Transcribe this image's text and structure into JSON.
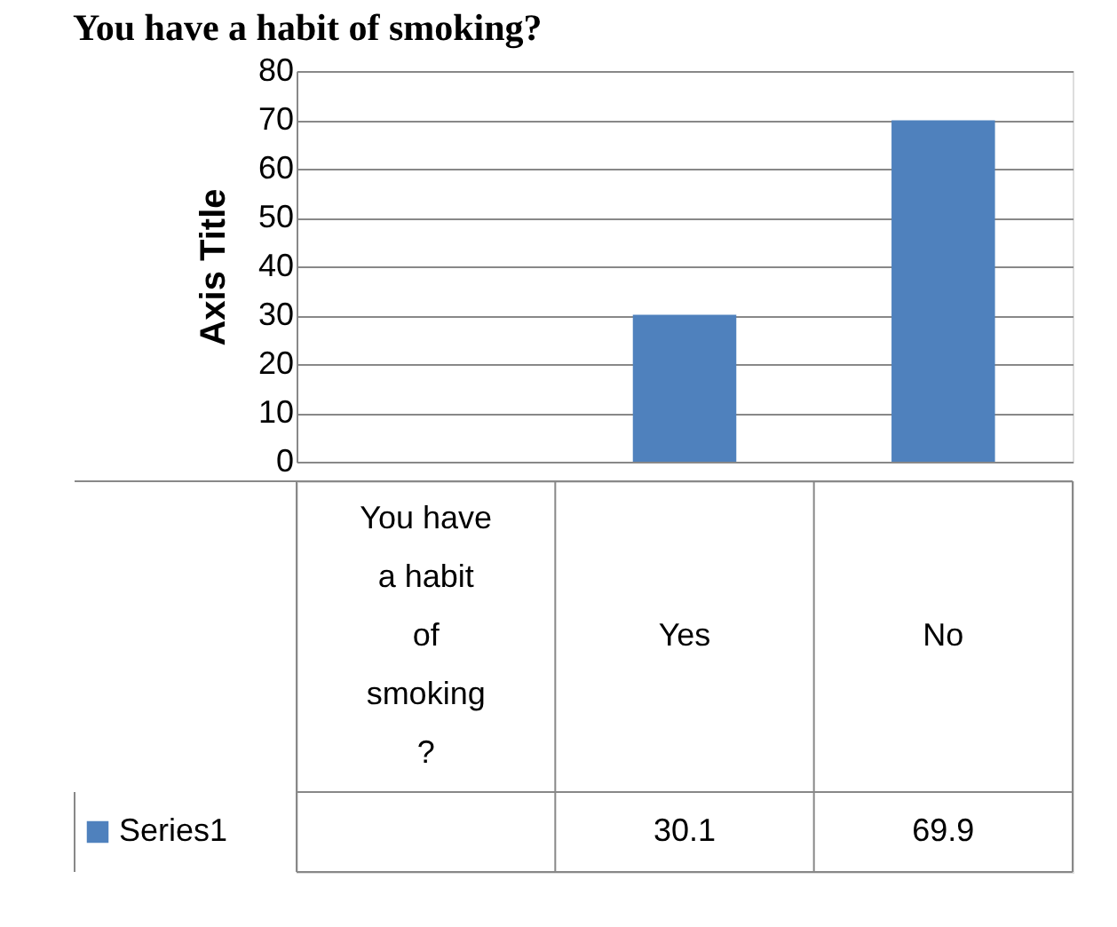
{
  "chart_data": {
    "type": "bar",
    "title": "You have a habit of smoking?",
    "ylabel": "Axis Title",
    "categories": [
      "You have a habit of smoking ?",
      "Yes",
      "No"
    ],
    "series": [
      {
        "name": "Series1",
        "color": "#4f81bd",
        "values": [
          null,
          30.1,
          69.9
        ]
      }
    ],
    "ylim": [
      0,
      80
    ],
    "yticks": [
      0,
      10,
      20,
      30,
      40,
      50,
      60,
      70,
      80
    ],
    "grid": "y",
    "legend": "bottom",
    "data_labels": true
  }
}
